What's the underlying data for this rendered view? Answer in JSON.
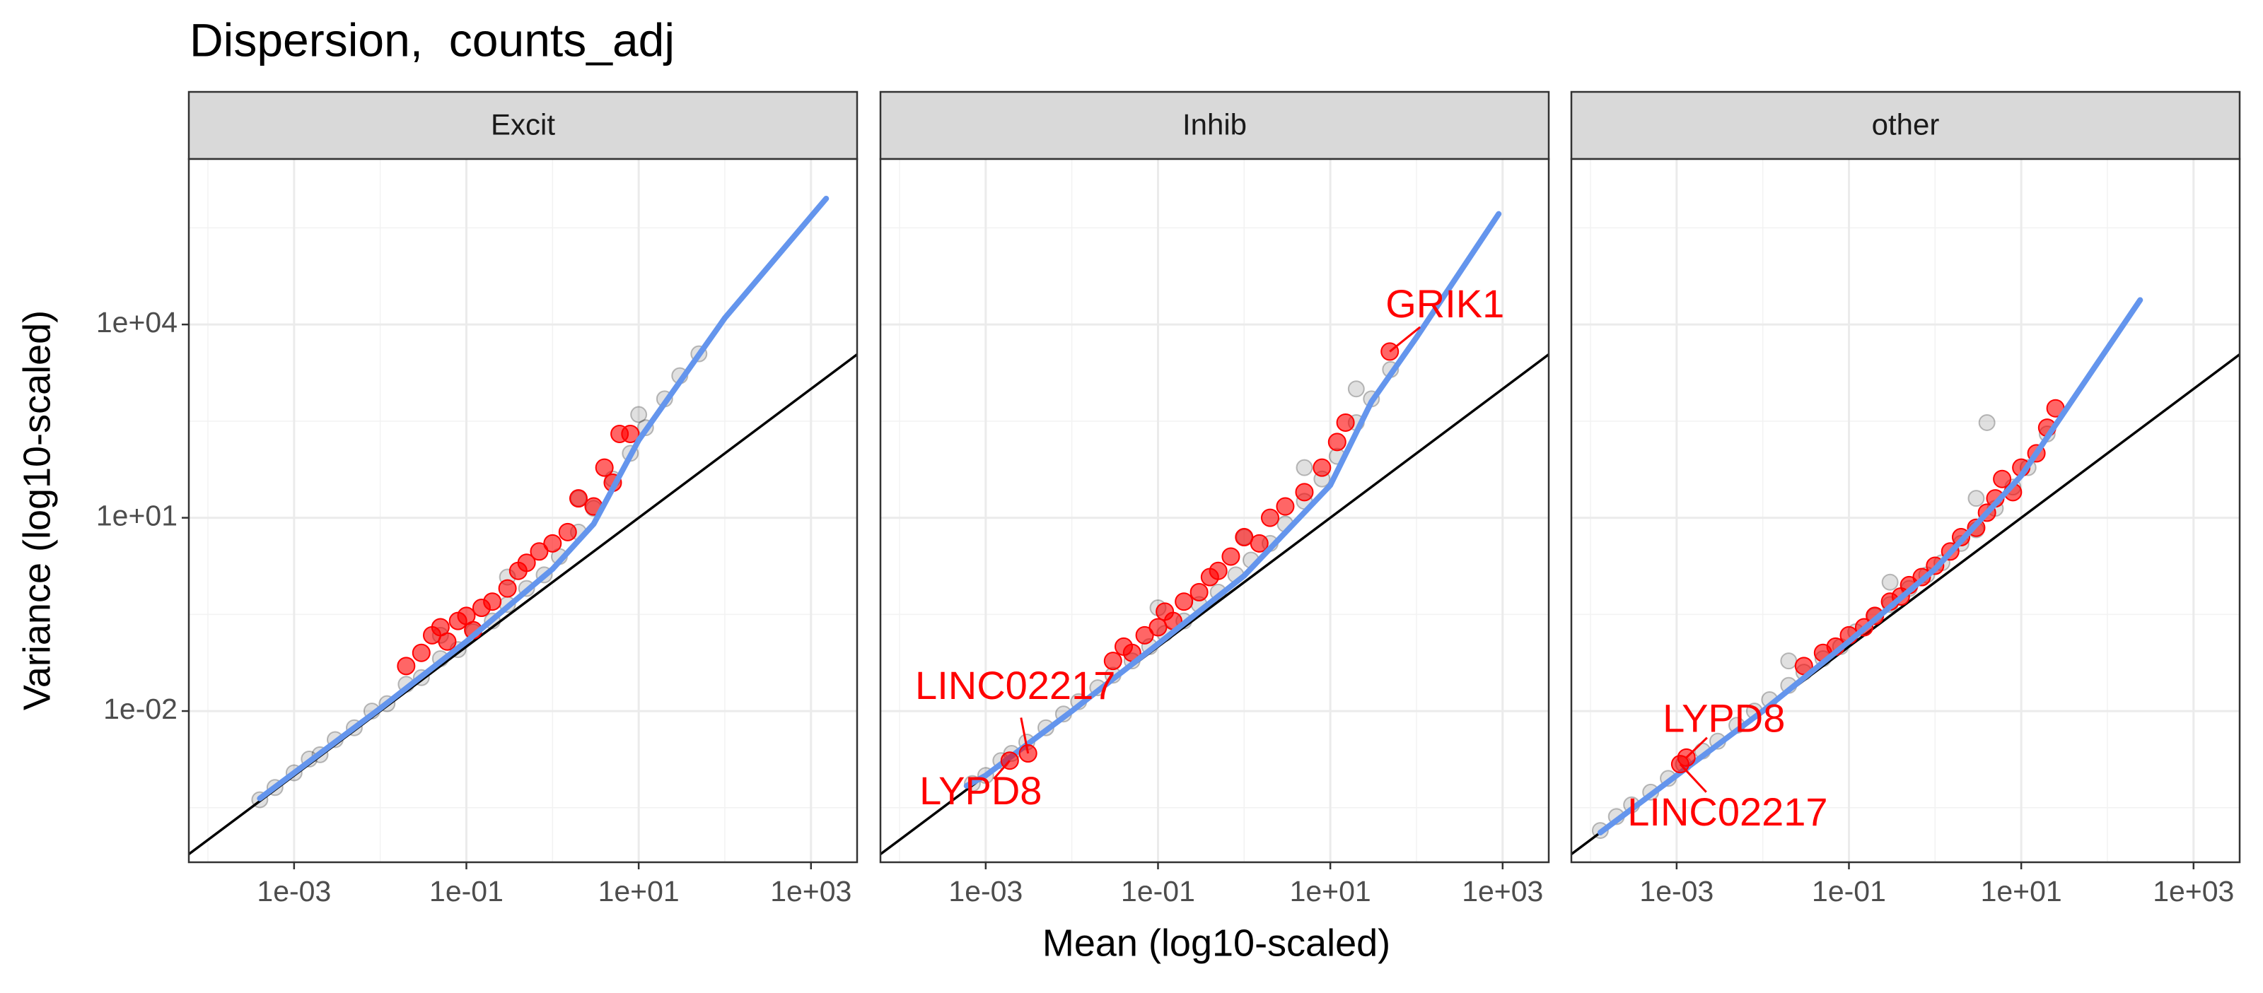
{
  "title": "Dispersion,  counts_adj",
  "x_label": "Mean (log10-scaled)",
  "y_label": "Variance (log10-scaled)",
  "chart_data": [
    {
      "type": "scatter",
      "facet": "Excit",
      "xscale": "log",
      "yscale": "log",
      "xlim": [
        6e-05,
        3430
      ],
      "ylim": [
        4.5e-05,
        3700000.0
      ],
      "xticks": [
        {
          "value": 0.001,
          "label": "1e-03"
        },
        {
          "value": 0.1,
          "label": "1e-01"
        },
        {
          "value": 10,
          "label": "1e+01"
        },
        {
          "value": 1000,
          "label": "1e+03"
        }
      ],
      "yticks": [
        {
          "value": 0.01,
          "label": "1e-02"
        },
        {
          "value": 10,
          "label": "1e+01"
        },
        {
          "value": 10000,
          "label": "1e+04"
        }
      ],
      "grid": true,
      "identity_line": true,
      "points": {
        "color": "#000000",
        "x": [
          0.0004,
          0.0006,
          0.001,
          0.0015,
          0.002,
          0.003,
          0.005,
          0.008,
          0.012,
          0.02,
          0.03,
          0.05,
          0.08,
          0.12,
          0.2,
          0.3,
          0.5,
          0.8,
          1.2,
          2,
          3,
          5,
          8,
          12,
          20,
          30,
          50,
          0.05,
          0.3,
          2,
          10
        ],
        "y": [
          0.00042,
          0.00065,
          0.0011,
          0.0018,
          0.0021,
          0.0036,
          0.0055,
          0.01,
          0.013,
          0.026,
          0.033,
          0.065,
          0.09,
          0.17,
          0.25,
          0.45,
          0.8,
          1.3,
          2.5,
          6,
          14,
          40,
          100,
          250,
          700,
          1600,
          3500,
          0.15,
          1.2,
          20,
          400
        ]
      },
      "highlighted": {
        "color": "#ff0000",
        "x": [
          0.02,
          0.03,
          0.04,
          0.05,
          0.06,
          0.08,
          0.1,
          0.12,
          0.15,
          0.2,
          0.3,
          0.4,
          0.5,
          0.7,
          1,
          1.5,
          2,
          3,
          4,
          5,
          6,
          8
        ],
        "y": [
          0.05,
          0.08,
          0.15,
          0.2,
          0.12,
          0.25,
          0.3,
          0.18,
          0.4,
          0.5,
          0.8,
          1.5,
          2,
          3,
          4,
          6,
          20,
          15,
          60,
          35,
          200,
          200
        ]
      },
      "trend": {
        "color": "#6495ed",
        "x": [
          0.0004,
          0.001,
          0.01,
          0.1,
          1,
          3,
          10,
          100,
          1500
        ],
        "y": [
          0.00044,
          0.0011,
          0.011,
          0.12,
          1.6,
          8,
          160,
          12600,
          900000
        ]
      },
      "labels": []
    },
    {
      "type": "scatter",
      "facet": "Inhib",
      "xscale": "log",
      "yscale": "log",
      "xlim": [
        6e-05,
        3430
      ],
      "ylim": [
        4.5e-05,
        3700000.0
      ],
      "xticks": [
        {
          "value": 0.001,
          "label": "1e-03"
        },
        {
          "value": 0.1,
          "label": "1e-01"
        },
        {
          "value": 10,
          "label": "1e+01"
        },
        {
          "value": 1000,
          "label": "1e+03"
        }
      ],
      "yticks": [
        {
          "value": 0.01,
          "label": "1e-02"
        },
        {
          "value": 10,
          "label": "1e+01"
        },
        {
          "value": 10000,
          "label": "1e+04"
        }
      ],
      "grid": true,
      "identity_line": true,
      "points": {
        "color": "#000000",
        "x": [
          0.0007,
          0.001,
          0.0015,
          0.002,
          0.003,
          0.005,
          0.008,
          0.012,
          0.02,
          0.03,
          0.05,
          0.08,
          0.12,
          0.2,
          0.3,
          0.5,
          0.8,
          1.2,
          2,
          3,
          5,
          8,
          12,
          20,
          30,
          50,
          0.1,
          1,
          5,
          20
        ],
        "y": [
          0.00075,
          0.001,
          0.0017,
          0.0022,
          0.0033,
          0.0055,
          0.009,
          0.014,
          0.023,
          0.036,
          0.06,
          0.1,
          0.16,
          0.25,
          0.45,
          0.7,
          1.3,
          2.2,
          4,
          8,
          18,
          40,
          90,
          300,
          700,
          2000,
          0.4,
          5,
          60,
          1000
        ]
      },
      "highlighted": {
        "color": "#ff0000",
        "x": [
          0.03,
          0.04,
          0.05,
          0.07,
          0.1,
          0.12,
          0.15,
          0.2,
          0.3,
          0.4,
          0.5,
          0.7,
          1,
          1.5,
          2,
          3,
          5,
          8,
          12,
          15
        ],
        "y": [
          0.06,
          0.1,
          0.08,
          0.15,
          0.2,
          0.35,
          0.25,
          0.5,
          0.7,
          1.2,
          1.5,
          2.5,
          5,
          4,
          10,
          15,
          25,
          60,
          150,
          300
        ]
      },
      "trend": {
        "color": "#6495ed",
        "x": [
          0.0006,
          0.001,
          0.01,
          0.1,
          1,
          10,
          30,
          100,
          900
        ],
        "y": [
          0.00069,
          0.001,
          0.01,
          0.11,
          1.26,
          32,
          630,
          6300,
          520000
        ]
      },
      "labels": [
        {
          "text": "GRIK1",
          "x": 49,
          "y": 3800
        },
        {
          "text": "LINC02217",
          "x": 0.0031,
          "y": 0.0022
        },
        {
          "text": "LYPD8",
          "x": 0.0019,
          "y": 0.0017
        }
      ]
    },
    {
      "type": "scatter",
      "facet": "other",
      "xscale": "log",
      "yscale": "log",
      "xlim": [
        6e-05,
        3430
      ],
      "ylim": [
        4.5e-05,
        3700000.0
      ],
      "xticks": [
        {
          "value": 0.001,
          "label": "1e-03"
        },
        {
          "value": 0.1,
          "label": "1e-01"
        },
        {
          "value": 10,
          "label": "1e+01"
        },
        {
          "value": 1000,
          "label": "1e+03"
        }
      ],
      "yticks": [
        {
          "value": 0.01,
          "label": "1e-02"
        },
        {
          "value": 10,
          "label": "1e+01"
        },
        {
          "value": 10000,
          "label": "1e+04"
        }
      ],
      "grid": true,
      "identity_line": true,
      "points": {
        "color": "#000000",
        "x": [
          0.00013,
          0.0002,
          0.0003,
          0.0005,
          0.0008,
          0.0012,
          0.002,
          0.003,
          0.005,
          0.008,
          0.012,
          0.02,
          0.03,
          0.05,
          0.08,
          0.12,
          0.2,
          0.3,
          0.5,
          0.8,
          1.2,
          2,
          3,
          5,
          8,
          12,
          20,
          0.02,
          0.3,
          3,
          4
        ],
        "y": [
          0.00014,
          0.00023,
          0.00035,
          0.00055,
          0.0009,
          0.0015,
          0.0024,
          0.0034,
          0.006,
          0.01,
          0.015,
          0.025,
          0.04,
          0.065,
          0.1,
          0.17,
          0.3,
          0.45,
          0.8,
          1.3,
          2,
          4,
          6.5,
          14,
          30,
          60,
          200,
          0.06,
          1,
          20,
          300
        ]
      },
      "highlighted": {
        "color": "#ff0000",
        "x": [
          0.03,
          0.05,
          0.07,
          0.1,
          0.15,
          0.2,
          0.3,
          0.4,
          0.5,
          0.7,
          1,
          1.5,
          2,
          3,
          4,
          5,
          6,
          8,
          10,
          15,
          20,
          25
        ],
        "y": [
          0.05,
          0.08,
          0.1,
          0.15,
          0.2,
          0.3,
          0.5,
          0.6,
          0.9,
          1.2,
          1.8,
          3,
          5,
          7,
          12,
          20,
          40,
          25,
          60,
          100,
          250,
          500
        ]
      },
      "trend": {
        "color": "#6495ed",
        "x": [
          0.00013,
          0.001,
          0.01,
          0.1,
          1,
          10,
          240
        ],
        "y": [
          0.00013,
          0.001,
          0.01,
          0.12,
          1.6,
          45,
          24000
        ]
      },
      "labels": [
        {
          "text": "LYPD8",
          "x": 0.0013,
          "y": 0.0019
        },
        {
          "text": "LINC02217",
          "x": 0.0011,
          "y": 0.0015
        }
      ]
    }
  ]
}
